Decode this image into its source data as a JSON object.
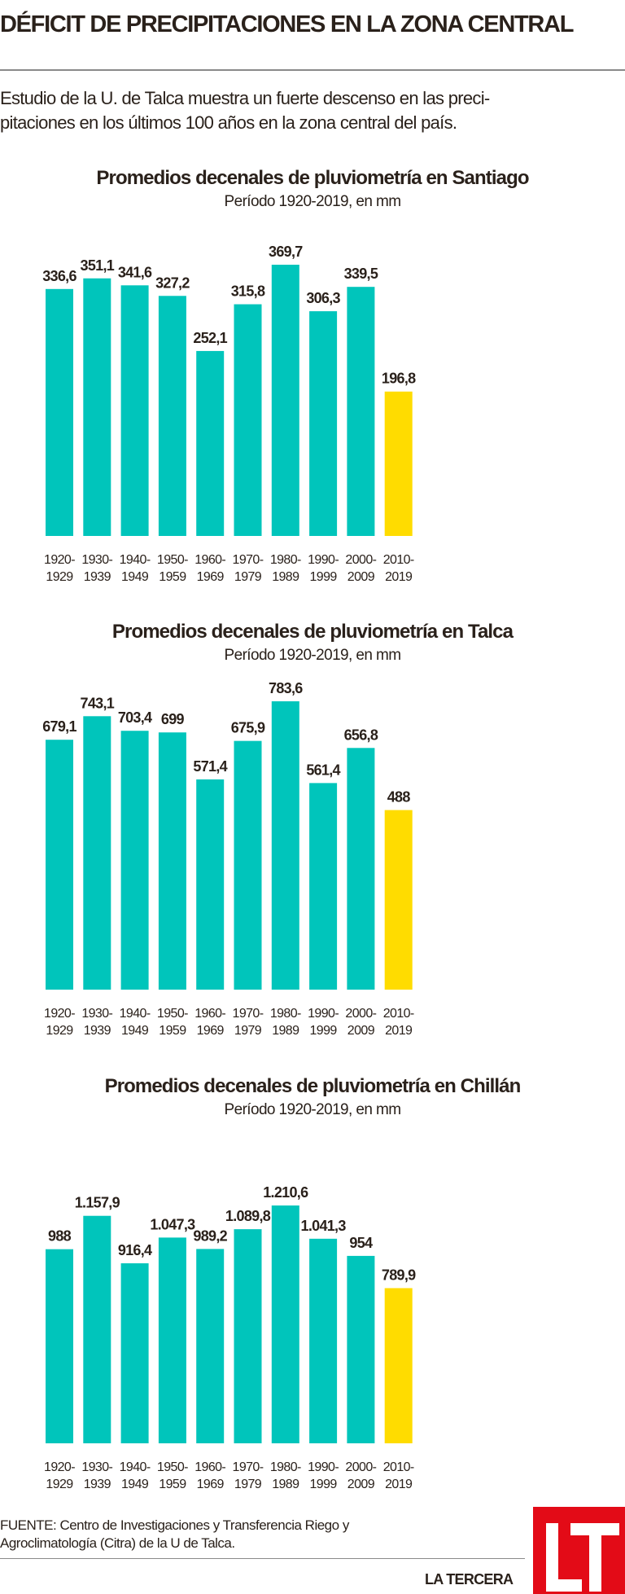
{
  "headline": "DÉFICIT DE PRECIPITACIONES EN LA ZONA CENTRAL",
  "intro": {
    "line1": "Estudio de la U. de Talca muestra un fuerte descenso en las preci-",
    "line2": "pitaciones en los últimos 100 años en la zona central del país."
  },
  "colors": {
    "bar": "#00c5bb",
    "highlight": "#ffdc00",
    "text": "#2a211b",
    "logo": "#e30b17"
  },
  "chart_data": [
    {
      "type": "bar",
      "title": "Promedios decenales de pluviometría en Santiago",
      "subtitle": "Período 1920-2019, en mm",
      "xlabel": "",
      "ylabel": "mm",
      "categories": [
        [
          "1920-",
          "1929"
        ],
        [
          "1930-",
          "1939"
        ],
        [
          "1940-",
          "1949"
        ],
        [
          "1950-",
          "1959"
        ],
        [
          "1960-",
          "1969"
        ],
        [
          "1970-",
          "1979"
        ],
        [
          "1980-",
          "1989"
        ],
        [
          "1990-",
          "1999"
        ],
        [
          "2000-",
          "2009"
        ],
        [
          "2010-",
          "2019"
        ]
      ],
      "values": [
        336.6,
        351.1,
        341.6,
        327.2,
        252.1,
        315.8,
        369.7,
        306.3,
        339.5,
        196.8
      ],
      "labels": [
        "336,6",
        "351,1",
        "341,6",
        "327,2",
        "252,1",
        "315,8",
        "369,7",
        "306,3",
        "339,5",
        "196,8"
      ],
      "highlight_index": 9,
      "ylim": [
        0,
        369.7
      ],
      "grid": false
    },
    {
      "type": "bar",
      "title": "Promedios decenales de pluviometría en Talca",
      "subtitle": "Período 1920-2019, en mm",
      "xlabel": "",
      "ylabel": "mm",
      "categories": [
        [
          "1920-",
          "1929"
        ],
        [
          "1930-",
          "1939"
        ],
        [
          "1940-",
          "1949"
        ],
        [
          "1950-",
          "1959"
        ],
        [
          "1960-",
          "1969"
        ],
        [
          "1970-",
          "1979"
        ],
        [
          "1980-",
          "1989"
        ],
        [
          "1990-",
          "1999"
        ],
        [
          "2000-",
          "2009"
        ],
        [
          "2010-",
          "2019"
        ]
      ],
      "values": [
        679.1,
        743.1,
        703.4,
        699,
        571.4,
        675.9,
        783.6,
        561.4,
        656.8,
        488
      ],
      "labels": [
        "679,1",
        "743,1",
        "703,4",
        "699",
        "571,4",
        "675,9",
        "783,6",
        "561,4",
        "656,8",
        "488"
      ],
      "highlight_index": 9,
      "ylim": [
        0,
        783.6
      ],
      "grid": false
    },
    {
      "type": "bar",
      "title": "Promedios decenales de pluviometría en Chillán",
      "subtitle": "Período 1920-2019, en mm",
      "xlabel": "",
      "ylabel": "mm",
      "categories": [
        [
          "1920-",
          "1929"
        ],
        [
          "1930-",
          "1939"
        ],
        [
          "1940-",
          "1949"
        ],
        [
          "1950-",
          "1959"
        ],
        [
          "1960-",
          "1969"
        ],
        [
          "1970-",
          "1979"
        ],
        [
          "1980-",
          "1989"
        ],
        [
          "1990-",
          "1999"
        ],
        [
          "2000-",
          "2009"
        ],
        [
          "2010-",
          "2019"
        ]
      ],
      "values": [
        988,
        1157.9,
        916.4,
        1047.3,
        989.2,
        1089.8,
        1210.6,
        1041.3,
        954,
        789.9
      ],
      "labels": [
        "988",
        "1.157,9",
        "916,4",
        "1.047,3",
        "989,2",
        "1.089,8",
        "1.210,6",
        "1.041,3",
        "954",
        "789,9"
      ],
      "highlight_index": 9,
      "ylim": [
        0,
        1210.6
      ],
      "grid": false
    }
  ],
  "source": {
    "line1": "FUENTE: Centro de Investigaciones y Transferencia Riego y",
    "line2": "Agroclimatología (Citra) de la U de Talca."
  },
  "brand": {
    "name": "LA TERCERA",
    "logo_text": "LT"
  }
}
